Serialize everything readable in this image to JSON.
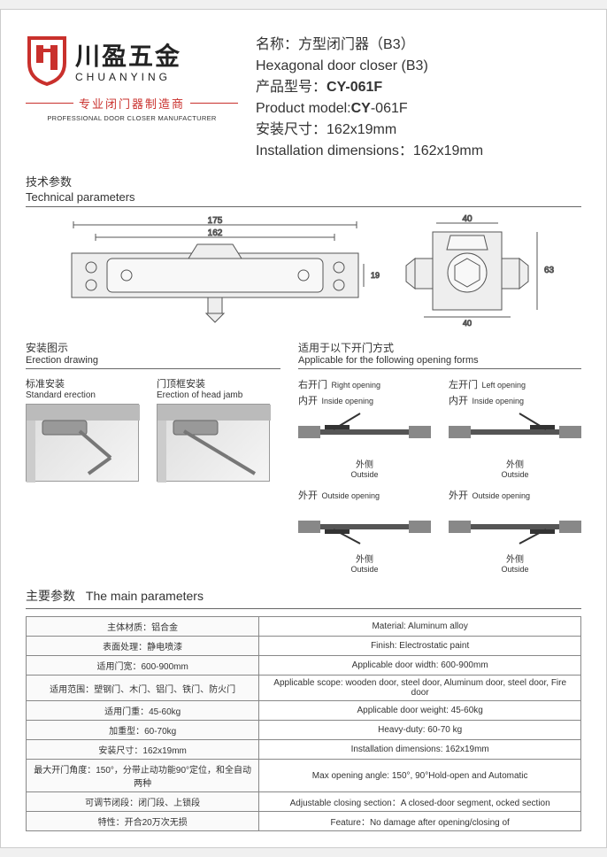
{
  "brand": {
    "cn": "川盈五金",
    "en": "CHUANYING",
    "tagline_cn": "专业闭门器制造商",
    "tagline_en": "PROFESSIONAL DOOR CLOSER MANUFACTURER",
    "shield_color": "#c9302c"
  },
  "product": {
    "name_label_cn": "名称：",
    "name_cn": "方型闭门器（B3）",
    "name_en": "Hexagonal door closer (B3)",
    "model_label_cn": "产品型号：",
    "model_label_en": "Product model:",
    "model_bold": "CY",
    "model_rest": "-061F",
    "install_label_cn": "安装尺寸：",
    "install_cn": "162x19mm",
    "install_label_en": "Installation dimensions：",
    "install_en": "162x19mm"
  },
  "sections": {
    "tech_cn": "技术参数",
    "tech_en": "Technical parameters",
    "erection_cn": "安装图示",
    "erection_en": "Erection drawing",
    "applicable_cn": "适用于以下开门方式",
    "applicable_en": "Applicable for the following opening forms",
    "main_cn": "主要参数",
    "main_en": "The main parameters"
  },
  "tech_dims": {
    "w_outer": "175",
    "w_inner": "162",
    "h_small": "19",
    "side_w": "40",
    "side_h": "63",
    "side_inner": "40"
  },
  "erection_items": [
    {
      "cn": "标准安装",
      "en": "Standard erection"
    },
    {
      "cn": "门顶框安装",
      "en": "Erection of head jamb"
    }
  ],
  "door_openings": [
    {
      "title_cn": "右开门",
      "title_en": "Right opening",
      "sub_cn": "内开",
      "sub_en": "Inside opening",
      "out_cn": "外侧",
      "out_en": "Outside"
    },
    {
      "title_cn": "左开门",
      "title_en": "Left opening",
      "sub_cn": "内开",
      "sub_en": "Inside opening",
      "out_cn": "外侧",
      "out_en": "Outside"
    },
    {
      "title_cn": "外开",
      "title_en": "Outside opening",
      "sub_cn": "",
      "sub_en": "",
      "out_cn": "外侧",
      "out_en": "Outside"
    },
    {
      "title_cn": "外开",
      "title_en": "Outside opening",
      "sub_cn": "",
      "sub_en": "",
      "out_cn": "外侧",
      "out_en": "Outside"
    }
  ],
  "params": [
    {
      "cn": "主体材质：铝合金",
      "en": "Material: Aluminum alloy"
    },
    {
      "cn": "表面处理：静电喷漆",
      "en": "Finish: Electrostatic paint"
    },
    {
      "cn": "适用门宽：600-900mm",
      "en": "Applicable door width: 600-900mm"
    },
    {
      "cn": "适用范围：塑钢门、木门、铝门、铁门、防火门",
      "en": "Applicable scope: wooden door, steel door, Aluminum door, steel door, Fire door"
    },
    {
      "cn": "适用门重：45-60kg",
      "en": "Applicable door weight: 45-60kg"
    },
    {
      "cn": "加重型：60-70kg",
      "en": "Heavy-duty: 60-70 kg"
    },
    {
      "cn": "安装尺寸：162x19mm",
      "en": "Installation dimensions: 162x19mm"
    },
    {
      "cn": "最大开门角度：150°，分带止动功能90°定位，和全自动两种",
      "en": "Max opening angle: 150°, 90°Hold-open and Automatic"
    },
    {
      "cn": "可调节闭段：闭门段、上锁段",
      "en": "Adjustable closing section：A closed-door segment, ocked section"
    },
    {
      "cn": "特性：开合20万次无损",
      "en": "Feature：No damage after opening/closing of"
    }
  ],
  "colors": {
    "diagram_stroke": "#555",
    "diagram_fill": "#eee",
    "wall": "#888"
  }
}
